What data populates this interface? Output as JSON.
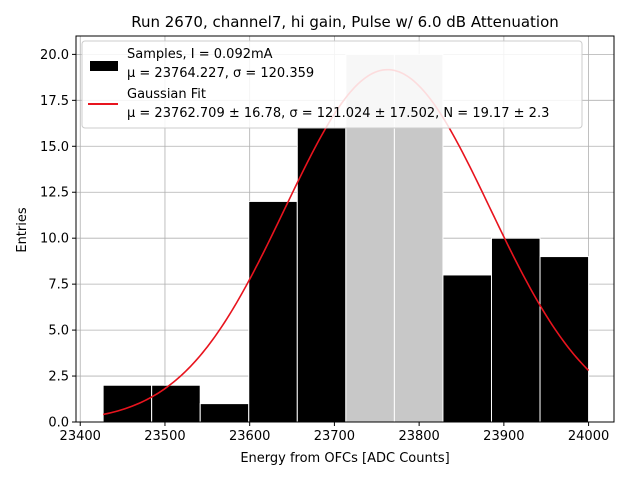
{
  "chart_data": {
    "type": "bar",
    "title": "Run 2670, channel7, hi gain, Pulse w/ 6.0 dB Attenuation",
    "xlabel": "Energy from OFCs [ADC Counts]",
    "ylabel": "Entries",
    "xlim": [
      23395,
      24030
    ],
    "ylim": [
      0,
      21
    ],
    "grid": true,
    "x_ticks": [
      23400,
      23500,
      23600,
      23700,
      23800,
      23900,
      24000
    ],
    "y_ticks": [
      "0.0",
      "2.5",
      "5.0",
      "7.5",
      "10.0",
      "12.5",
      "15.0",
      "17.5",
      "20.0"
    ],
    "histogram": {
      "bin_edges": [
        23427,
        23484.3,
        23541.6,
        23598.9,
        23656.2,
        23713.5,
        23770.8,
        23828.1,
        23885.4,
        23942.7,
        24000
      ],
      "counts": [
        2,
        2,
        1,
        12,
        16,
        20,
        20,
        8,
        10,
        9
      ],
      "colors": [
        "#000000",
        "#000000",
        "#000000",
        "#000000",
        "#000000",
        "#c8c8c8",
        "#c8c8c8",
        "#000000",
        "#000000",
        "#000000"
      ]
    },
    "fit": {
      "mu": 23762.709,
      "sigma": 121.024,
      "N": 19.17,
      "color": "#e8141e"
    },
    "legend_placement": "top-left",
    "legend": [
      {
        "line1": "Samples, I = 0.092mA",
        "line2": "μ = 23764.227, σ = 120.359",
        "swatch": "#000000"
      },
      {
        "line1": "Gaussian Fit",
        "line2": "μ = 23762.709 ± 16.78, σ = 121.024 ± 17.502, N = 19.17 ± 2.3",
        "swatch": "#e8141e"
      }
    ]
  }
}
